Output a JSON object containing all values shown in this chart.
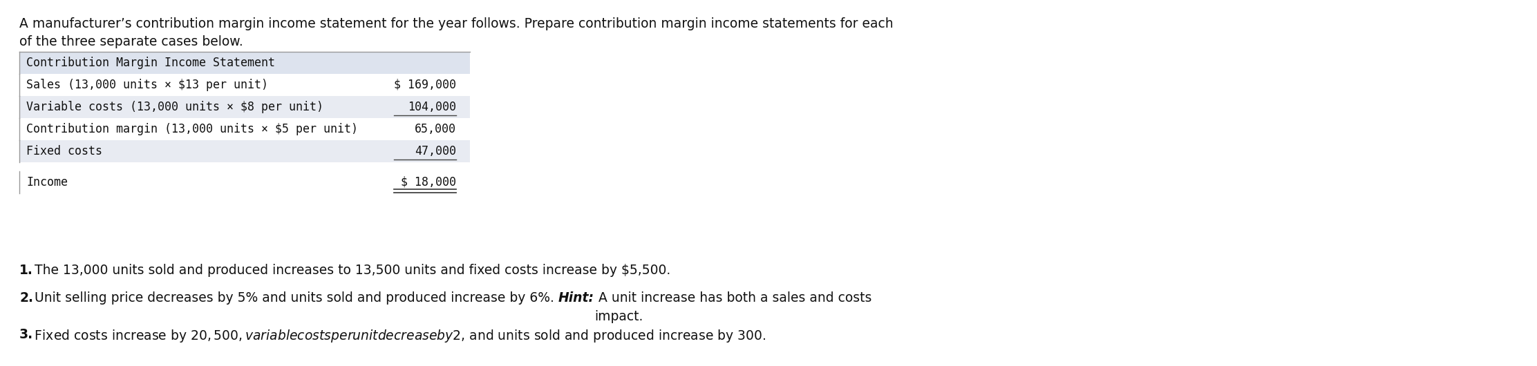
{
  "intro_line1": "A manufacturer’s contribution margin income statement for the year follows. Prepare contribution margin income statements for each",
  "intro_line2": "of the three separate cases below.",
  "table_header": "Contribution Margin Income Statement",
  "table_rows": [
    {
      "label": "Sales (13,000 units × $13 per unit)",
      "value": "$ 169,000",
      "underline": false,
      "shade": false
    },
    {
      "label": "Variable costs (13,000 units × $8 per unit)",
      "value": "104,000",
      "underline": true,
      "shade": true
    },
    {
      "label": "Contribution margin (13,000 units × $5 per unit)",
      "value": "65,000",
      "underline": false,
      "shade": false
    },
    {
      "label": "Fixed costs",
      "value": "47,000",
      "underline": true,
      "shade": true
    },
    {
      "label": "Income",
      "value": "$ 18,000",
      "underline": false,
      "double_underline": true,
      "shade": false,
      "gap_before": true
    }
  ],
  "note1_bold": "1.",
  "note1_text": " The 13,000 units sold and produced increases to 13,500 units and fixed costs increase by $5,500.",
  "note2_bold": "2.",
  "note2_before_hint": " Unit selling price decreases by 5% and units sold and produced increase by 6%. ",
  "note2_hint": "Hint:",
  "note2_after_hint": " A unit increase has both a sales and costs\nimpact.",
  "note3_bold": "3.",
  "note3_text": " Fixed costs increase by $20,500, variable costs per unit decrease by $2, and units sold and produced increase by 300.",
  "header_bg": "#dde3ee",
  "row_shade_bg": "#e8ebf2",
  "table_border_color": "#999999",
  "underline_color": "#444444",
  "font_color": "#111111",
  "bg_color": "#ffffff",
  "mono_font": "DejaVu Sans Mono",
  "sans_font": "DejaVu Sans"
}
